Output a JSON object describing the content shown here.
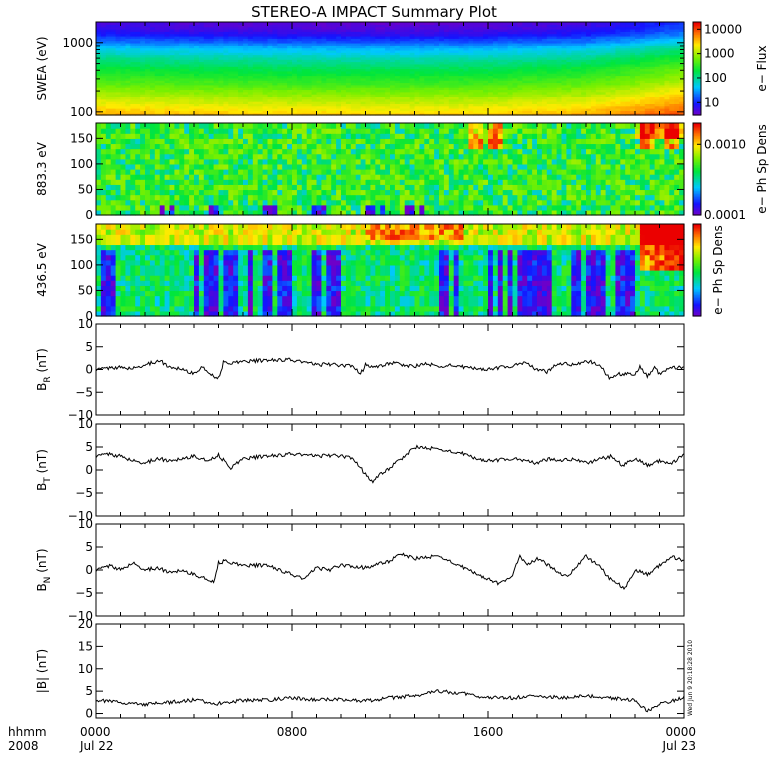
{
  "title": "STEREO-A IMPACT Summary Plot",
  "stamp": "Wed Jun 9 20:18:28 2010",
  "x_axis": {
    "corner_labels": [
      "hhmm",
      "2008"
    ],
    "ticks": [
      {
        "hour": 0,
        "time": "0000",
        "date": "Jul 22"
      },
      {
        "hour": 8,
        "time": "0800",
        "date": ""
      },
      {
        "hour": 16,
        "time": "1600",
        "date": ""
      },
      {
        "hour": 24,
        "time": "0000",
        "date": "Jul 23"
      }
    ],
    "range_hours": [
      0,
      24
    ],
    "minor_step_hours": 1
  },
  "colors": {
    "trace": "#000000",
    "axes": "#000000"
  },
  "chart_data": [
    {
      "type": "heatmap",
      "id": "swea",
      "ylabel": "SWEA (eV)",
      "yscale": "log",
      "ylim": [
        90,
        2000
      ],
      "yticks": [
        {
          "v": 100,
          "label": "100"
        },
        {
          "v": 1000,
          "label": "1000"
        }
      ],
      "colorbar": {
        "label": "e− Flux",
        "scale": "log",
        "range": [
          3,
          20000
        ],
        "ticks": [
          {
            "v": 10,
            "label": "10"
          },
          {
            "v": 100,
            "label": "100"
          },
          {
            "v": 1000,
            "label": "1000"
          },
          {
            "v": 10000,
            "label": "10000"
          }
        ]
      },
      "profile": {
        "energies": [
          90,
          100,
          130,
          180,
          250,
          350,
          500,
          700,
          1000,
          1300,
          1600,
          2000
        ],
        "flux": [
          4000,
          3000,
          1800,
          900,
          450,
          250,
          130,
          60,
          18,
          8,
          5,
          4
        ]
      },
      "time_modulation": {
        "hours": [
          0,
          4,
          8,
          12,
          16,
          20,
          22,
          24
        ],
        "factor": [
          1.2,
          1.0,
          0.9,
          0.85,
          0.9,
          1.2,
          1.8,
          3.0
        ]
      }
    },
    {
      "type": "heatmap",
      "id": "pad883",
      "ylabel": "883.3 eV",
      "yscale": "linear",
      "ylim": [
        0,
        180
      ],
      "yticks": [
        {
          "v": 0,
          "label": "0"
        },
        {
          "v": 50,
          "label": "50"
        },
        {
          "v": 100,
          "label": "100"
        },
        {
          "v": 150,
          "label": "150"
        }
      ],
      "colorbar": {
        "label": "e− Ph Sp Dens",
        "scale": "log",
        "range": [
          0.0001,
          0.002
        ],
        "ticks": [
          {
            "v": 0.0001,
            "label": "0.0001"
          },
          {
            "v": 0.001,
            "label": "0.0010"
          }
        ]
      },
      "base_level": 0.00045,
      "hot_hours": [
        15.5,
        16.3,
        22.5,
        23.5
      ],
      "cold_hours": [
        3,
        5,
        7,
        9,
        11.3,
        13
      ]
    },
    {
      "type": "heatmap",
      "id": "pad436",
      "ylabel": "436.5 eV",
      "yscale": "linear",
      "ylim": [
        0,
        180
      ],
      "yticks": [
        {
          "v": 0,
          "label": "0"
        },
        {
          "v": 50,
          "label": "50"
        },
        {
          "v": 100,
          "label": "100"
        },
        {
          "v": 150,
          "label": "150"
        }
      ],
      "colorbar": {
        "label": "e− Ph Sp Dens",
        "scale": "log",
        "range": [
          0.0001,
          0.002
        ],
        "ticks": []
      },
      "blue_bands": [
        [
          0,
          0.8
        ],
        [
          4,
          8
        ],
        [
          8.8,
          10.4
        ],
        [
          14,
          15
        ],
        [
          16,
          18.5
        ],
        [
          19.5,
          21
        ],
        [
          21.2,
          22
        ]
      ],
      "hot_region": [
        22.3,
        24
      ]
    },
    {
      "type": "line",
      "id": "br",
      "ylabel": "B",
      "ylabel_sub": "R",
      "ylabel_unit": "(nT)",
      "ylim": [
        -10,
        10
      ],
      "yticks": [
        {
          "v": -10,
          "label": "−10"
        },
        {
          "v": -5,
          "label": "−5"
        },
        {
          "v": 0,
          "label": "0"
        },
        {
          "v": 5,
          "label": "5"
        },
        {
          "v": 10,
          "label": "10"
        }
      ],
      "x": [
        0,
        0.8,
        1.5,
        2,
        2.6,
        3,
        3.5,
        4,
        4.3,
        4.7,
        5,
        5.2,
        5.6,
        6,
        7,
        7.8,
        8.5,
        9,
        9.5,
        10,
        10.5,
        10.8,
        11,
        11.5,
        12,
        12.5,
        13,
        13.5,
        14,
        14.5,
        15,
        16,
        16.5,
        17,
        17.5,
        18,
        18.4,
        18.8,
        19.5,
        20.2,
        20.6,
        21,
        21.3,
        22,
        22.2,
        22.5,
        22.8,
        23,
        23.4,
        24
      ],
      "y": [
        0,
        0.5,
        0.2,
        1,
        2,
        0.5,
        0.2,
        -1,
        0.5,
        -1,
        -2,
        1.5,
        1.5,
        1.8,
        2,
        2.2,
        1.6,
        1,
        1.2,
        0.8,
        0.8,
        -1,
        1,
        0.5,
        1.5,
        1,
        0.7,
        1.3,
        0.5,
        1,
        0.5,
        0,
        0.5,
        0.8,
        1.5,
        0,
        -0.5,
        1.2,
        1.2,
        1.8,
        0.5,
        -2,
        -1,
        -1,
        0.5,
        -1.5,
        0.5,
        -1,
        0.5,
        0.5
      ]
    },
    {
      "type": "line",
      "id": "bt",
      "ylabel": "B",
      "ylabel_sub": "T",
      "ylabel_unit": "(nT)",
      "ylim": [
        -10,
        10
      ],
      "yticks": [
        {
          "v": -10,
          "label": "−10"
        },
        {
          "v": -5,
          "label": "−5"
        },
        {
          "v": 0,
          "label": "0"
        },
        {
          "v": 5,
          "label": "5"
        },
        {
          "v": 10,
          "label": "10"
        }
      ],
      "x": [
        0,
        0.5,
        1,
        1.5,
        2,
        2.5,
        3,
        3.5,
        4,
        4.5,
        5,
        5.5,
        6,
        7,
        8,
        9,
        9.5,
        10,
        10.5,
        10.8,
        11,
        11.3,
        11.6,
        12,
        12.5,
        13,
        14,
        15,
        15.5,
        16,
        17,
        18,
        18.5,
        19,
        19.5,
        20,
        21,
        21.5,
        22,
        22.5,
        23,
        23.5,
        24
      ],
      "y": [
        3,
        3.5,
        3,
        2,
        1.5,
        2.5,
        2,
        2.5,
        3,
        2,
        3.2,
        0.5,
        2.5,
        3,
        3.5,
        3,
        3.2,
        3,
        2.5,
        0.5,
        -1,
        -2.5,
        -1,
        0.5,
        2.5,
        5,
        4.5,
        3.5,
        2.5,
        2,
        2.5,
        1.5,
        2.5,
        2,
        2.5,
        1.5,
        3,
        1,
        2.5,
        1,
        2,
        1.5,
        3.5
      ]
    },
    {
      "type": "line",
      "id": "bn",
      "ylabel": "B",
      "ylabel_sub": "N",
      "ylabel_unit": "(nT)",
      "ylim": [
        -10,
        10
      ],
      "yticks": [
        {
          "v": -10,
          "label": "−10"
        },
        {
          "v": -5,
          "label": "−5"
        },
        {
          "v": 0,
          "label": "0"
        },
        {
          "v": 5,
          "label": "5"
        },
        {
          "v": 10,
          "label": "10"
        }
      ],
      "x": [
        0,
        0.6,
        1,
        1.5,
        2,
        2.5,
        3,
        3.5,
        4,
        4.5,
        4.8,
        5,
        5.3,
        5.6,
        6,
        7,
        8,
        8.5,
        9,
        9.5,
        10,
        11,
        12,
        12.5,
        13,
        14,
        15,
        16,
        16.5,
        17,
        17.3,
        17.6,
        18,
        18.5,
        19,
        19.2,
        20,
        20.5,
        21,
        21.3,
        21.6,
        22,
        22.5,
        23,
        23.5,
        24
      ],
      "y": [
        0,
        1,
        0,
        1.5,
        0,
        0.5,
        -0.5,
        0,
        -1,
        -2,
        -2.5,
        1.5,
        2,
        1.5,
        1,
        1,
        -1,
        -2,
        0.5,
        0,
        1,
        0.5,
        2,
        3.5,
        2.5,
        3,
        0.5,
        -2,
        -3,
        -1,
        3,
        1,
        2.5,
        1,
        -1,
        -1.5,
        3,
        1,
        -2,
        -3,
        -4,
        0,
        -1,
        1,
        3,
        2
      ]
    },
    {
      "type": "line",
      "id": "bmag",
      "ylabel": "|B| (nT)",
      "ylim": [
        -1,
        20
      ],
      "yticks": [
        {
          "v": 0,
          "label": "0"
        },
        {
          "v": 5,
          "label": "5"
        },
        {
          "v": 10,
          "label": "10"
        },
        {
          "v": 15,
          "label": "15"
        },
        {
          "v": 20,
          "label": "20"
        }
      ],
      "x": [
        0,
        1,
        2,
        3,
        4,
        5,
        6,
        7,
        8,
        9,
        10,
        11,
        12,
        13,
        14,
        15,
        16,
        17,
        18,
        19,
        20,
        21,
        22,
        22.5,
        23,
        24
      ],
      "y": [
        3,
        2.5,
        2,
        2.5,
        3,
        2.2,
        3,
        3,
        3.5,
        3,
        3.2,
        2.8,
        3.5,
        4,
        5,
        4.5,
        3.5,
        3.5,
        4,
        3.5,
        4,
        3.5,
        3,
        0.5,
        2,
        3.5
      ]
    }
  ]
}
